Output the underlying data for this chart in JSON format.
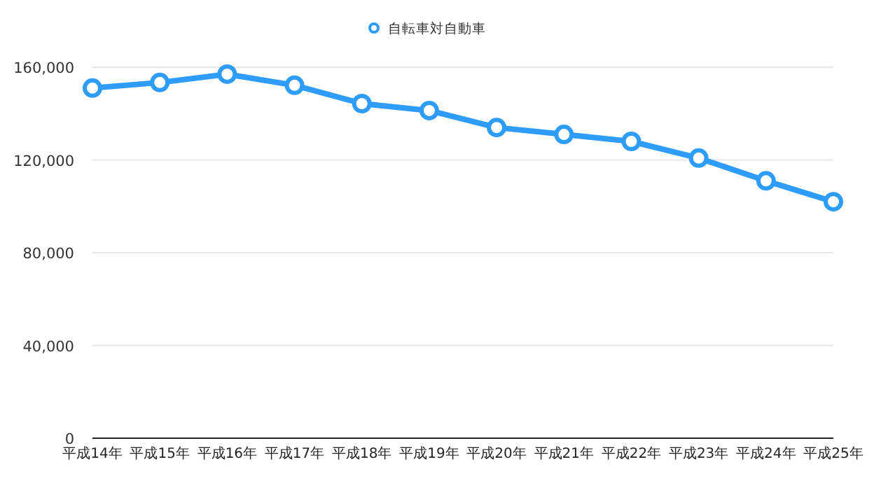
{
  "chart_data": {
    "type": "line",
    "categories": [
      "平成14年",
      "平成15年",
      "平成16年",
      "平成17年",
      "平成18年",
      "平成19年",
      "平成20年",
      "平成21年",
      "平成22年",
      "平成23年",
      "平成24年",
      "平成25年"
    ],
    "series": [
      {
        "name": "自転車対自動車",
        "color": "#2e9cfa",
        "values": [
          151000,
          153400,
          157000,
          152200,
          144300,
          141300,
          134000,
          131000,
          128000,
          120800,
          111000,
          102000
        ]
      }
    ],
    "ylim": [
      0,
      160000
    ],
    "yticks": [
      {
        "value": 0,
        "label": "0"
      },
      {
        "value": 40000,
        "label": "40,000"
      },
      {
        "value": 80000,
        "label": "80,000"
      },
      {
        "value": 120000,
        "label": "120,000"
      },
      {
        "value": 160000,
        "label": "160,000"
      }
    ],
    "grid": "y",
    "legend": "top",
    "marker": "circle"
  }
}
